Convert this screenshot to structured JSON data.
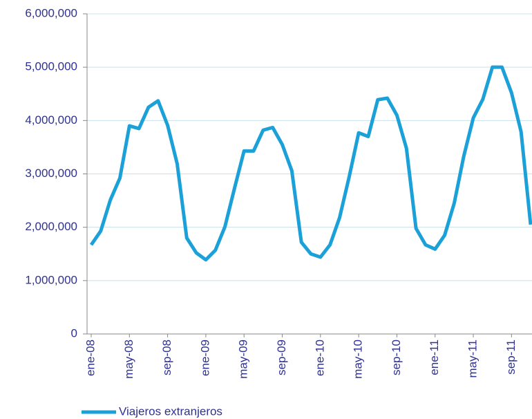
{
  "chart_data": {
    "type": "line",
    "categories": [
      "ene-08",
      null,
      null,
      null,
      "may-08",
      null,
      null,
      null,
      "sep-08",
      null,
      null,
      null,
      "ene-09",
      null,
      null,
      null,
      "may-09",
      null,
      null,
      null,
      "sep-09",
      null,
      null,
      null,
      "ene-10",
      null,
      null,
      null,
      "may-10",
      null,
      null,
      null,
      "sep-10",
      null,
      null,
      null,
      "ene-11",
      null,
      null,
      null,
      "may-11",
      null,
      null,
      null,
      "sep-11",
      null,
      null
    ],
    "series": [
      {
        "name": "Viajeros extranjeros",
        "color": "#1ba1d8",
        "values": [
          1670000,
          1930000,
          2510000,
          2920000,
          3900000,
          3850000,
          4250000,
          4370000,
          3910000,
          3190000,
          1800000,
          1520000,
          1390000,
          1570000,
          2010000,
          2730000,
          3430000,
          3430000,
          3820000,
          3870000,
          3550000,
          3060000,
          1720000,
          1500000,
          1440000,
          1670000,
          2180000,
          2940000,
          3770000,
          3700000,
          4390000,
          4420000,
          4100000,
          3480000,
          1980000,
          1670000,
          1590000,
          1850000,
          2450000,
          3330000,
          4050000,
          4400000,
          5000000,
          5000000,
          4520000,
          3790000,
          2050000
        ]
      }
    ],
    "ylim": [
      0,
      6000000
    ],
    "yticks": [
      0,
      {
        "value": 1000000,
        "label": "1,000,000"
      },
      {
        "value": 2000000,
        "label": "2,000,000"
      },
      {
        "value": 3000000,
        "label": "3,000,000"
      },
      {
        "value": 4000000,
        "label": "4,000,000"
      },
      {
        "value": 5000000,
        "label": "5,000,000"
      },
      {
        "value": 6000000,
        "label": "6,000,000"
      }
    ],
    "grid": true,
    "legend": "bottom-left"
  }
}
